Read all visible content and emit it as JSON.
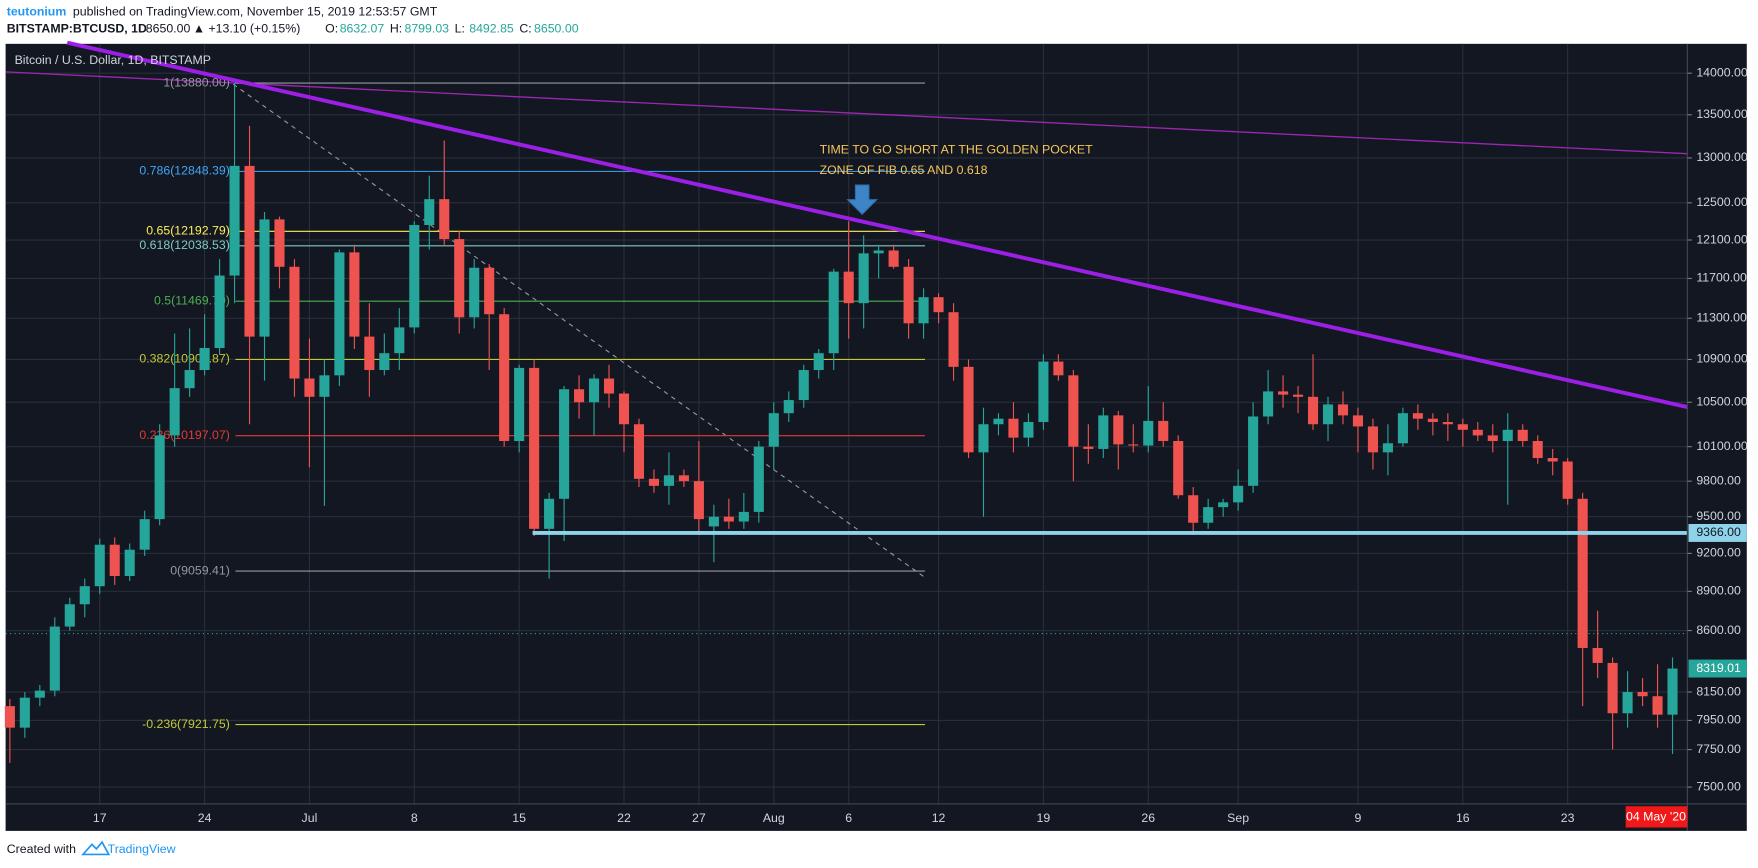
{
  "header": {
    "author": "teutonium",
    "published": "published on TradingView.com, November 15, 2019 12:53:57 GMT",
    "symbol": "BITSTAMP:BTCUSD, 1D",
    "last": "8650.00",
    "change": "▲ +13.10 (+0.15%)",
    "ohlc": [
      {
        "label": "O:",
        "value": "8632.07"
      },
      {
        "label": "H:",
        "value": "8799.03"
      },
      {
        "label": "L:",
        "value": "8492.85"
      },
      {
        "label": "C:",
        "value": "8650.00"
      }
    ]
  },
  "footer": {
    "created": "Created with",
    "brand": "TradingView"
  },
  "chart_data": {
    "type": "candlestick",
    "title": "Bitcoin / U.S. Dollar, 1D, BITSTAMP",
    "log_scale": true,
    "grid": true,
    "up_color": "#26a69a",
    "down_color": "#ef5350",
    "categories": [
      null,
      null,
      null,
      null,
      null,
      null,
      "17",
      null,
      null,
      null,
      null,
      null,
      null,
      "24",
      null,
      null,
      null,
      null,
      null,
      null,
      "Jul",
      null,
      null,
      null,
      null,
      null,
      null,
      "8",
      null,
      null,
      null,
      null,
      null,
      null,
      "15",
      null,
      null,
      null,
      null,
      null,
      null,
      "22",
      null,
      null,
      null,
      null,
      "27",
      null,
      null,
      null,
      null,
      "Aug",
      null,
      null,
      null,
      null,
      "6",
      null,
      null,
      null,
      null,
      null,
      "12",
      null,
      null,
      null,
      null,
      null,
      null,
      "19",
      null,
      null,
      null,
      null,
      null,
      null,
      "26",
      null,
      null,
      null,
      null,
      null,
      "Sep",
      null,
      null,
      null,
      null,
      null,
      null,
      null,
      "9",
      null,
      null,
      null,
      null,
      null,
      null,
      "16",
      null,
      null,
      null,
      null,
      null,
      null,
      "23",
      null,
      null,
      null,
      null,
      null,
      null,
      null
    ],
    "open": [
      8050,
      7900,
      8110,
      8160,
      8630,
      8800,
      8940,
      9270,
      9020,
      9230,
      9480,
      10200,
      10630,
      10800,
      11010,
      11730,
      12910,
      11120,
      12320,
      11820,
      10720,
      10550,
      10750,
      11970,
      11120,
      10800,
      10960,
      11210,
      12260,
      12540,
      12110,
      11310,
      11810,
      11340,
      10150,
      10820,
      9400,
      9650,
      10620,
      10500,
      10720,
      10580,
      10300,
      9820,
      9760,
      9850,
      9800,
      9420,
      9500,
      9460,
      9540,
      10100,
      10400,
      10520,
      10800,
      10960,
      11770,
      11450,
      11960,
      11990,
      11820,
      11250,
      11510,
      11360,
      10830,
      10050,
      10300,
      10350,
      10180,
      10320,
      10880,
      10750,
      10100,
      10080,
      10380,
      10120,
      10110,
      10330,
      10150,
      9680,
      9450,
      9580,
      9620,
      9760,
      10370,
      10600,
      10570,
      10550,
      10300,
      10480,
      10380,
      10280,
      10050,
      10130,
      10400,
      10350,
      10320,
      10300,
      10250,
      10200,
      10150,
      10250,
      10150,
      10000,
      9970,
      9650,
      8470,
      8360,
      8000,
      8150,
      8120,
      7990
    ],
    "high": [
      8100,
      8150,
      8200,
      8700,
      8850,
      9000,
      9320,
      9330,
      9280,
      9550,
      10300,
      11150,
      11200,
      11340,
      11900,
      13880,
      13370,
      12400,
      12350,
      11900,
      11100,
      10900,
      12000,
      12050,
      11450,
      11150,
      11400,
      12300,
      12800,
      13200,
      12200,
      11900,
      11850,
      11400,
      10850,
      10900,
      9700,
      10650,
      10750,
      10760,
      10850,
      10600,
      10350,
      9900,
      10050,
      9900,
      10150,
      9600,
      9650,
      9700,
      10150,
      10500,
      10600,
      10850,
      11000,
      11800,
      12300,
      12150,
      12050,
      12050,
      11900,
      11600,
      11550,
      11450,
      10900,
      10450,
      10400,
      10500,
      10400,
      10950,
      10950,
      10800,
      10300,
      10450,
      10420,
      10300,
      10650,
      10500,
      10200,
      9750,
      9650,
      9650,
      9900,
      10500,
      10800,
      10750,
      10650,
      10950,
      10550,
      10600,
      10450,
      10350,
      10300,
      10450,
      10480,
      10400,
      10400,
      10350,
      10320,
      10300,
      10400,
      10300,
      10200,
      10080,
      10000,
      9700,
      8750,
      8400,
      8300,
      8250,
      8350,
      8400
    ],
    "low": [
      7660,
      7830,
      8050,
      8120,
      8600,
      8700,
      8880,
      8950,
      8980,
      9180,
      9430,
      10100,
      10550,
      10750,
      10950,
      11450,
      10300,
      10700,
      11600,
      10550,
      9920,
      9590,
      10650,
      11000,
      10550,
      10750,
      10800,
      11150,
      12000,
      12050,
      11150,
      11200,
      10800,
      10100,
      10050,
      9340,
      9000,
      9300,
      10350,
      10200,
      10450,
      10050,
      9750,
      9700,
      9600,
      9750,
      9350,
      9130,
      9400,
      9400,
      9450,
      9900,
      10320,
      10450,
      10720,
      10800,
      11100,
      11200,
      11700,
      11800,
      11100,
      11100,
      11250,
      10700,
      10000,
      9500,
      10200,
      10050,
      10100,
      10250,
      10700,
      9800,
      9950,
      10000,
      9900,
      10050,
      10050,
      10100,
      9650,
      9350,
      9400,
      9500,
      9550,
      9700,
      10300,
      10450,
      10400,
      10250,
      10150,
      10300,
      10050,
      9900,
      9850,
      10100,
      10250,
      10200,
      10150,
      10100,
      10150,
      10050,
      9600,
      10100,
      9950,
      9850,
      9600,
      8050,
      8250,
      7750,
      7900,
      8050,
      7900,
      7720
    ],
    "close": [
      7900,
      8110,
      8160,
      8630,
      8800,
      8940,
      9270,
      9020,
      9230,
      9480,
      10200,
      10630,
      10800,
      11010,
      11730,
      12910,
      11120,
      12320,
      11820,
      10720,
      10550,
      10750,
      11970,
      11120,
      10800,
      10960,
      11210,
      12260,
      12540,
      12110,
      11310,
      11810,
      11340,
      10150,
      10820,
      9400,
      9650,
      10620,
      10500,
      10720,
      10580,
      10300,
      9820,
      9760,
      9850,
      9800,
      9480,
      9500,
      9460,
      9540,
      10100,
      10400,
      10520,
      10800,
      10960,
      11770,
      11450,
      11960,
      11990,
      11820,
      11250,
      11510,
      11360,
      10830,
      10050,
      10300,
      10350,
      10180,
      10320,
      10880,
      10750,
      10100,
      10080,
      10380,
      10120,
      10110,
      10330,
      10150,
      9680,
      9450,
      9580,
      9620,
      9760,
      10370,
      10600,
      10570,
      10550,
      10300,
      10480,
      10380,
      10280,
      10050,
      10130,
      10400,
      10350,
      10320,
      10300,
      10250,
      10200,
      10150,
      10250,
      10150,
      10000,
      9970,
      9650,
      8470,
      8360,
      8000,
      8150,
      8120,
      7990,
      8319.01
    ],
    "ylim": [
      7390,
      14350
    ],
    "yticks": [
      {
        "value": 14000,
        "label": "14000.00"
      },
      {
        "value": 13500,
        "label": "13500.00"
      },
      {
        "value": 13000,
        "label": "13000.00"
      },
      {
        "value": 12500,
        "label": "12500.00"
      },
      {
        "value": 12100,
        "label": "12100.00"
      },
      {
        "value": 11700,
        "label": "11700.00"
      },
      {
        "value": 11300,
        "label": "11300.00"
      },
      {
        "value": 10900,
        "label": "10900.00"
      },
      {
        "value": 10500,
        "label": "10500.00"
      },
      {
        "value": 10100,
        "label": "10100.00"
      },
      {
        "value": 9800,
        "label": "9800.00"
      },
      {
        "value": 9500,
        "label": "9500.00"
      },
      {
        "value": 9200,
        "label": "9200.00"
      },
      {
        "value": 8900,
        "label": "8900.00"
      },
      {
        "value": 8600,
        "label": "8600.00"
      },
      {
        "value": 8150,
        "label": "8150.00"
      },
      {
        "value": 7950,
        "label": "7950.00"
      },
      {
        "value": 7750,
        "label": "7750.00"
      },
      {
        "value": 7500,
        "label": "7500.00"
      }
    ],
    "fib_levels": [
      {
        "value": 13880,
        "label": "1(13880.00)",
        "color": "#9598a1"
      },
      {
        "value": 12848.39,
        "label": "0.786(12848.39)",
        "color": "#42a5f5"
      },
      {
        "value": 12192.79,
        "label": "0.65(12192.79)",
        "color": "#ffee58"
      },
      {
        "value": 12038.53,
        "label": "0.618(12038.53)",
        "color": "#80cbc4"
      },
      {
        "value": 11469.7,
        "label": "0.5(11469.70)",
        "color": "#4caf50"
      },
      {
        "value": 10900.87,
        "label": "0.382(10900.87)",
        "color": "#c0ca33"
      },
      {
        "value": 10197.07,
        "label": "0.236(10197.07)",
        "color": "#e53935"
      },
      {
        "value": 9059.41,
        "label": "0(9059.41)",
        "color": "#9598a1"
      },
      {
        "value": 7921.75,
        "label": "-0.236(7921.75)",
        "color": "#c0ca33"
      }
    ],
    "support": {
      "value": 9366,
      "label": "9366.00",
      "color": "#8fd3ea"
    },
    "annotation": [
      "TIME TO GO SHORT AT THE GOLDEN POCKET",
      "ZONE OF FIB 0.65 AND 0.618"
    ],
    "date_marker": "04 May '20"
  }
}
